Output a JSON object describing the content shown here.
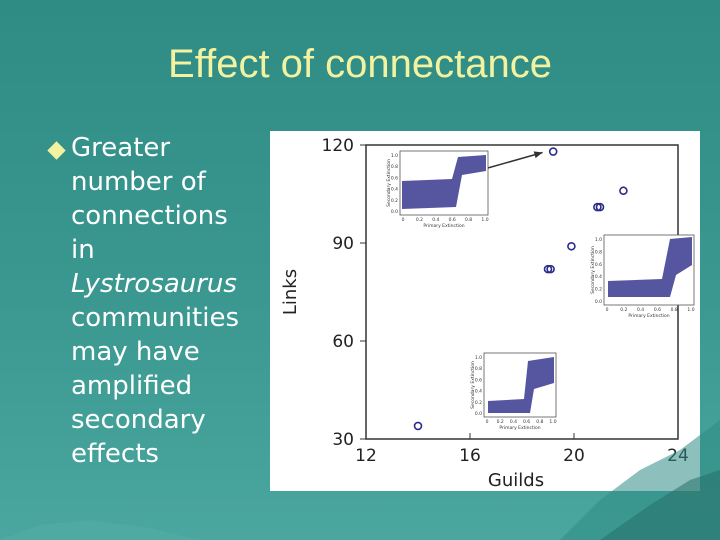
{
  "slide": {
    "title": "Effect of connectance",
    "bullet": {
      "line1": "Greater",
      "line2": "number of",
      "line3": "connections",
      "line4": "in",
      "line5_italic": "Lystrosaurus",
      "line6": "communities",
      "line7": "may have",
      "line8": "amplified",
      "line9": "secondary",
      "line10": "effects"
    }
  },
  "colors": {
    "title": "#f2f2a0",
    "text": "#ffffff",
    "point": "#2b2b8c",
    "inset_points": "#1c1c80"
  },
  "chart_data": {
    "type": "scatter",
    "title": "",
    "xlabel": "Guilds",
    "ylabel": "Links",
    "xlim": [
      12,
      24
    ],
    "ylim": [
      30,
      120
    ],
    "xticks": [
      12,
      16,
      20,
      24
    ],
    "yticks": [
      30,
      60,
      90,
      120
    ],
    "grid": false,
    "points": [
      {
        "x": 14.0,
        "y": 34
      },
      {
        "x": 19.0,
        "y": 82
      },
      {
        "x": 19.1,
        "y": 82
      },
      {
        "x": 19.9,
        "y": 89
      },
      {
        "x": 20.9,
        "y": 101
      },
      {
        "x": 21.0,
        "y": 101
      },
      {
        "x": 21.9,
        "y": 106
      },
      {
        "x": 19.2,
        "y": 118
      }
    ],
    "annotations": [
      {
        "type": "arrow",
        "from": [
          16.7,
          113
        ],
        "to": [
          19.1,
          118
        ]
      }
    ],
    "insets": [
      {
        "anchor": "top-left",
        "yticks": [
          "1.0",
          "0.8",
          "0.6",
          "0.4",
          "0.2",
          "0.0"
        ],
        "xticks": [
          "0",
          "0.2",
          "0.4",
          "0.6",
          "0.8",
          "1.0"
        ],
        "ylabel": "Secondary Extinction",
        "xlabel": "Primary Extinction"
      },
      {
        "anchor": "middle-right",
        "yticks": [
          "1.0",
          "0.8",
          "0.6",
          "0.4",
          "0.2",
          "0.0"
        ],
        "xticks": [
          "0",
          "0.2",
          "0.4",
          "0.6",
          "0.8",
          "1.0"
        ],
        "ylabel": "Secondary Extinction",
        "xlabel": "Primary Extinction"
      },
      {
        "anchor": "bottom-center",
        "yticks": [
          "1.0",
          "0.8",
          "0.6",
          "0.4",
          "0.2",
          "0.0"
        ],
        "xticks": [
          "0",
          "0.2",
          "0.4",
          "0.6",
          "0.8",
          "1.0"
        ],
        "ylabel": "Secondary Extinction",
        "xlabel": "Primary Extinction"
      }
    ]
  }
}
